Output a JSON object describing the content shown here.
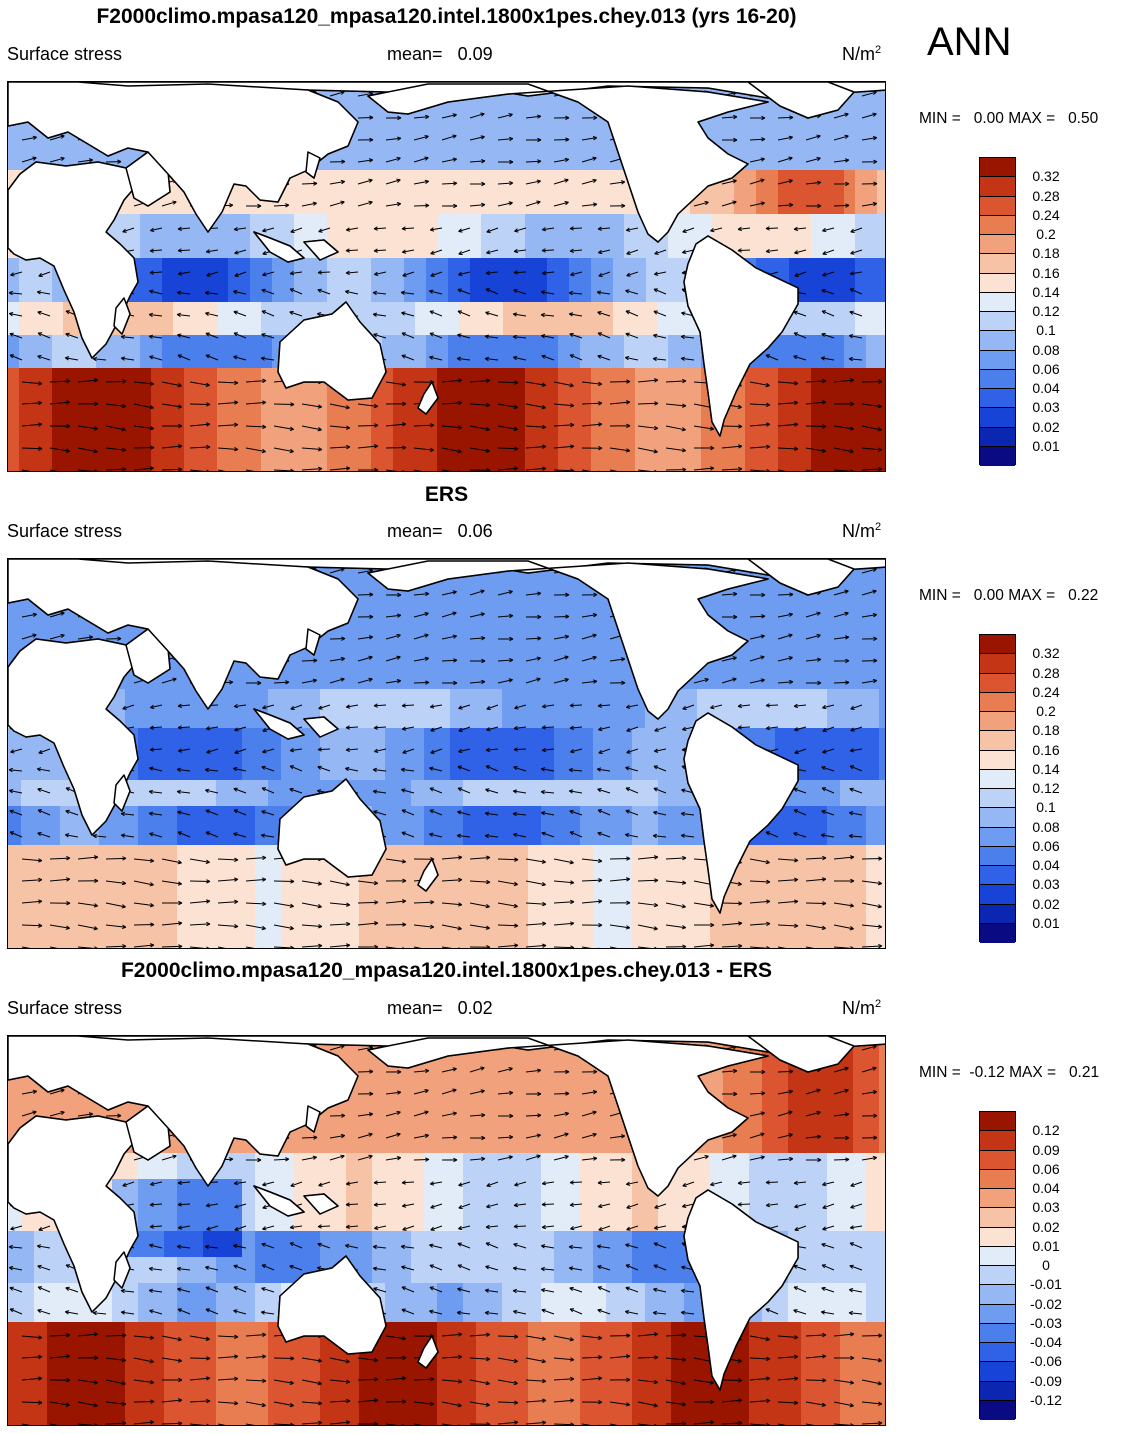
{
  "season": "ANN",
  "panels": [
    {
      "title": "F2000climo.mpasa120_mpasa120.intel.1800x1pes.chey.013 (yrs 16-20)",
      "variable": "Surface stress",
      "mean_label": "mean=",
      "mean_value": "0.09",
      "units": "N/m",
      "units_exp": "2",
      "min_label": "MIN =",
      "min_value": "0.00",
      "max_label": "MAX =",
      "max_value": "0.50",
      "colorbar": [
        "0.32",
        "0.28",
        "0.24",
        "0.2",
        "0.18",
        "0.16",
        "0.14",
        "0.12",
        "0.1",
        "0.08",
        "0.06",
        "0.04",
        "0.03",
        "0.02",
        "0.01"
      ]
    },
    {
      "title": "ERS",
      "variable": "Surface stress",
      "mean_label": "mean=",
      "mean_value": "0.06",
      "units": "N/m",
      "units_exp": "2",
      "min_label": "MIN =",
      "min_value": "0.00",
      "max_label": "MAX =",
      "max_value": "0.22",
      "colorbar": [
        "0.32",
        "0.28",
        "0.24",
        "0.2",
        "0.18",
        "0.16",
        "0.14",
        "0.12",
        "0.1",
        "0.08",
        "0.06",
        "0.04",
        "0.03",
        "0.02",
        "0.01"
      ]
    },
    {
      "title": "F2000climo.mpasa120_mpasa120.intel.1800x1pes.chey.013 - ERS",
      "variable": "Surface stress",
      "mean_label": "mean=",
      "mean_value": "0.02",
      "units": "N/m",
      "units_exp": "2",
      "min_label": "MIN =",
      "min_value": "-0.12",
      "max_label": "MAX =",
      "max_value": "0.21",
      "colorbar": [
        "0.12",
        "0.09",
        "0.06",
        "0.04",
        "0.03",
        "0.02",
        "0.01",
        "0",
        "-0.01",
        "-0.02",
        "-0.03",
        "-0.04",
        "-0.06",
        "-0.09",
        "-0.12"
      ]
    }
  ],
  "colors": {
    "scale": [
      "#0a0a82",
      "#0b26b0",
      "#1743d6",
      "#2f62e6",
      "#4a7fec",
      "#6e9cf0",
      "#95b8f4",
      "#bcd3f7",
      "#e2ecf8",
      "#fbe2d2",
      "#f7c3a6",
      "#f1a27d",
      "#e97d52",
      "#db5630",
      "#c33514",
      "#991500"
    ],
    "land": "#ffffff",
    "coast": "#000000"
  }
}
